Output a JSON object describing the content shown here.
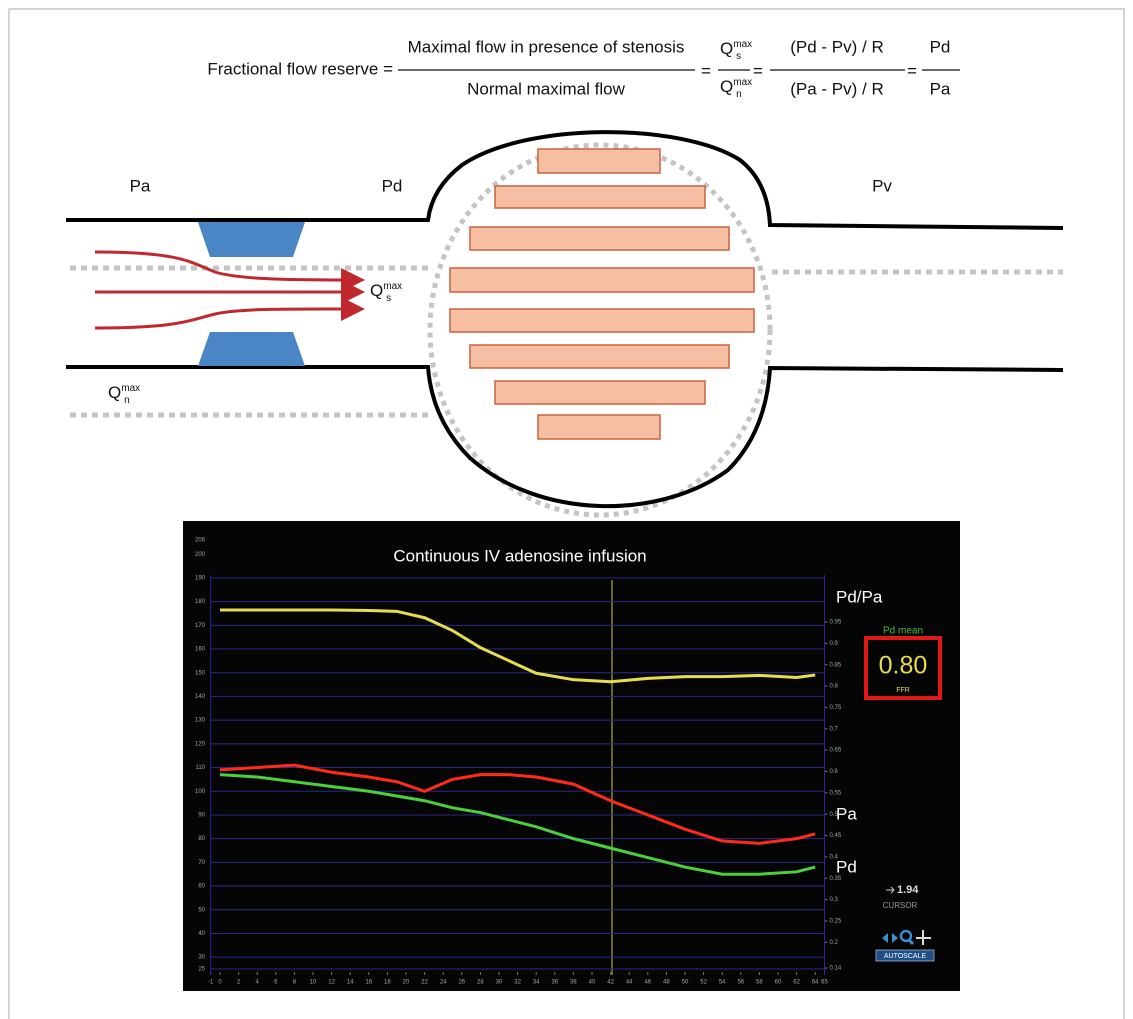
{
  "formula": {
    "lhs": "Fractional flow reserve =",
    "frac1_num": "Maximal flow in presence of stenosis",
    "frac1_den": "Normal maximal flow",
    "equals": "=",
    "q": "Q",
    "max": "max",
    "s": "s",
    "n": "n",
    "frac3_num": "(Pd - Pv) / R",
    "frac3_den": "(Pa - Pv) / R",
    "frac4_num": "Pd",
    "frac4_den": "Pa"
  },
  "diagram": {
    "pa": "Pa",
    "pd": "Pd",
    "pv": "Pv"
  },
  "monitor": {
    "title": "Continuous IV adenosine infusion",
    "x": [
      0,
      4,
      8,
      12,
      16,
      19,
      22,
      25,
      28,
      31,
      34,
      38,
      42,
      46,
      50,
      54,
      58,
      62,
      64
    ],
    "series": [
      {
        "name": "Pd/Pa",
        "color": "#e6dc50",
        "axis": "y2",
        "values": [
          0.978,
          0.978,
          0.978,
          0.978,
          0.977,
          0.975,
          0.96,
          0.93,
          0.89,
          0.86,
          0.83,
          0.815,
          0.81,
          0.818,
          0.822,
          0.822,
          0.825,
          0.82,
          0.826
        ]
      },
      {
        "name": "Pa",
        "color": "#ff2a1a",
        "values": [
          109,
          110,
          111,
          108,
          106,
          104,
          100,
          105,
          107,
          107,
          106,
          103,
          96,
          90,
          84,
          79,
          78,
          80,
          82
        ]
      },
      {
        "name": "Pd",
        "color": "#4ccf3c",
        "values": [
          107,
          106,
          104,
          102,
          100,
          98,
          96,
          93,
          91,
          88,
          85,
          80,
          76,
          72,
          68,
          65,
          65,
          66,
          68
        ]
      }
    ],
    "xlim": [
      -1,
      65
    ],
    "xticks": [
      -1,
      0,
      2,
      4,
      6,
      8,
      10,
      12,
      14,
      16,
      18,
      20,
      22,
      24,
      26,
      28,
      30,
      32,
      34,
      36,
      38,
      40,
      42,
      44,
      46,
      48,
      50,
      52,
      54,
      56,
      58,
      60,
      62,
      64,
      65
    ],
    "ylim": [
      25,
      206
    ],
    "yticks": [
      25,
      30,
      40,
      50,
      60,
      70,
      80,
      90,
      100,
      110,
      120,
      130,
      140,
      150,
      160,
      170,
      180,
      190,
      200,
      206
    ],
    "y2lim": [
      0.14,
      0.95
    ],
    "y2ticks": [
      0.14,
      0.2,
      0.25,
      0.3,
      0.35,
      0.4,
      0.45,
      0.5,
      0.55,
      0.6,
      0.65,
      0.7,
      0.75,
      0.8,
      0.85,
      0.9,
      0.95
    ],
    "grid": true,
    "panel": {
      "pd_mean": "Pd mean",
      "ffr_value": "0.80",
      "ffr_label": "FFR",
      "cursor_value": "1.94",
      "cursor_label": "CURSOR",
      "autoscale": "AUTOSCALE"
    }
  }
}
